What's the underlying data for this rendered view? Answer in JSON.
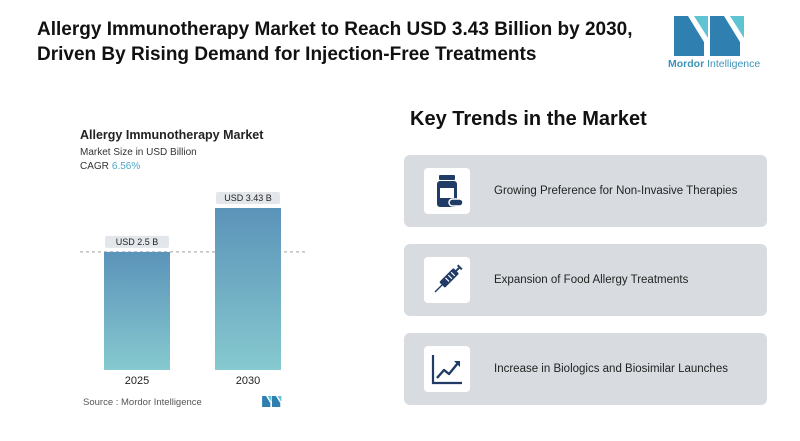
{
  "header": {
    "title_line1": "Allergy Immunotherapy Market to Reach USD 3.43 Billion by 2030,",
    "title_line2": "Driven By Rising Demand for Injection-Free Treatments"
  },
  "logo": {
    "brand_bold": "Mordor",
    "brand_regular": " Intelligence",
    "icon": "mordor-intelligence-logo"
  },
  "chart": {
    "title": "Allergy Immunotherapy Market",
    "subtitle": "Market Size in USD Billion",
    "cagr_label": "CAGR",
    "cagr_value": "6.56%",
    "source": "Source :  Mordor Intelligence"
  },
  "chart_data": {
    "type": "bar",
    "title": "Allergy Immunotherapy Market",
    "subtitle": "Market Size in USD Billion",
    "categories": [
      "2025",
      "2030"
    ],
    "values": [
      2.5,
      3.43
    ],
    "data_labels": [
      "USD 2.5 B",
      "USD 3.43 B"
    ],
    "ylim": [
      0,
      3.43
    ],
    "grid": false,
    "reference_line": {
      "style": "dashed",
      "value": 2.5
    },
    "bar_gradient": [
      "#5b93b9",
      "#86c9cf"
    ],
    "label_box_color": "#e3e6ea"
  },
  "trends": {
    "title": "Key Trends in the Market",
    "items": [
      {
        "label": "Growing Preference for Non-Invasive Therapies",
        "icon": "medicine-bottle-icon"
      },
      {
        "label": "Expansion of Food Allergy Treatments",
        "icon": "syringe-icon"
      },
      {
        "label": "Increase in Biologics and Biosimilar Launches",
        "icon": "growth-chart-icon"
      }
    ]
  },
  "colors": {
    "icon_navy": "#1f3b66",
    "brand_teal": "#3f93b8",
    "card_bg": "#d8dce1"
  }
}
